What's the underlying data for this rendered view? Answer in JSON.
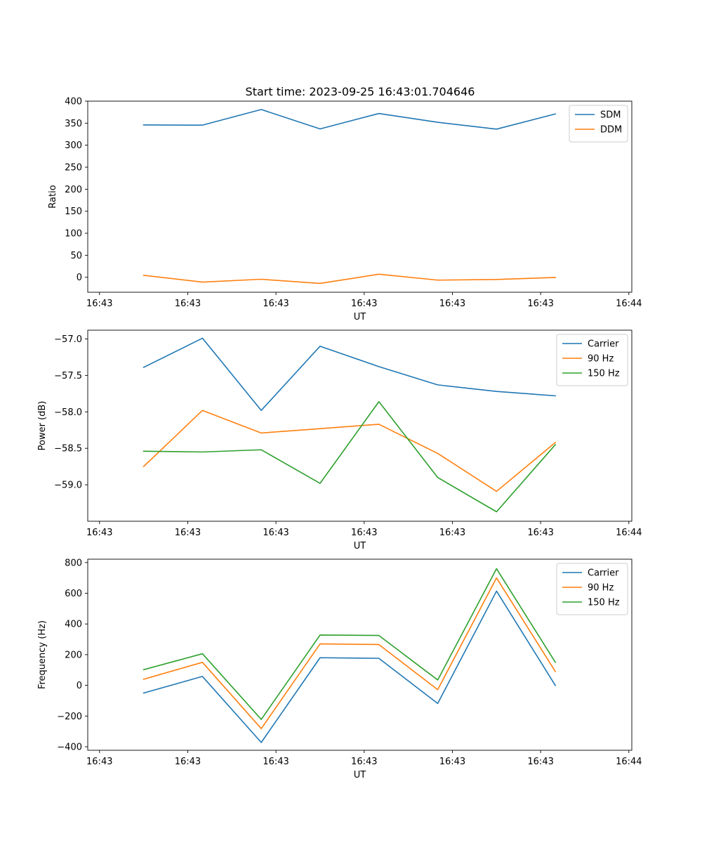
{
  "title": "Start time: 2023-09-25 16:43:01.704646",
  "colors": {
    "series_blue": "#1f77b4",
    "series_orange": "#ff7f0e",
    "series_green": "#2ca02c",
    "axes": "#000000",
    "legend_border": "#cccccc",
    "background": "#ffffff"
  },
  "chart_data": [
    {
      "type": "line",
      "xlabel": "UT",
      "ylabel": "Ratio",
      "title": "Start time: 2023-09-25 16:43:01.704646",
      "x_tick_labels": [
        "16:43",
        "16:43",
        "16:43",
        "16:43",
        "16:43",
        "16:43",
        "16:44"
      ],
      "xlim": [
        0.4,
        9.65
      ],
      "x_ticks": [
        0.6,
        2.1,
        3.6,
        5.1,
        6.6,
        8.1,
        9.6
      ],
      "x": [
        1.35,
        2.35,
        3.35,
        4.35,
        5.35,
        6.35,
        7.35,
        8.35
      ],
      "ylim": [
        -34,
        400
      ],
      "y_ticks": [
        0,
        50,
        100,
        150,
        200,
        250,
        300,
        350,
        400
      ],
      "y_tick_labels": [
        "0",
        "50",
        "100",
        "150",
        "200",
        "250",
        "300",
        "350",
        "400"
      ],
      "legend_position": "top-right",
      "series": [
        {
          "name": "SDM",
          "color_key": "series_blue",
          "values": [
            346,
            345.5,
            381,
            337,
            372,
            352,
            336.5,
            371
          ]
        },
        {
          "name": "DDM",
          "color_key": "series_orange",
          "values": [
            4.5,
            -11,
            -4.5,
            -14,
            7,
            -6.5,
            -5,
            -0.5
          ]
        }
      ]
    },
    {
      "type": "line",
      "xlabel": "UT",
      "ylabel": "Power (dB)",
      "x_tick_labels": [
        "16:43",
        "16:43",
        "16:43",
        "16:43",
        "16:43",
        "16:43",
        "16:44"
      ],
      "xlim": [
        0.4,
        9.65
      ],
      "x_ticks": [
        0.6,
        2.1,
        3.6,
        5.1,
        6.6,
        8.1,
        9.6
      ],
      "x": [
        1.35,
        2.35,
        3.35,
        4.35,
        5.35,
        6.35,
        7.35,
        8.35
      ],
      "ylim": [
        -59.5,
        -56.88
      ],
      "y_ticks": [
        -59.0,
        -58.5,
        -58.0,
        -57.5,
        -57.0
      ],
      "y_tick_labels": [
        "−59.0",
        "−58.5",
        "−58.0",
        "−57.5",
        "−57.0"
      ],
      "legend_position": "top-right",
      "series": [
        {
          "name": "Carrier",
          "color_key": "series_blue",
          "values": [
            -57.39,
            -56.99,
            -57.98,
            -57.1,
            -57.38,
            -57.63,
            -57.72,
            -57.78
          ]
        },
        {
          "name": "90 Hz",
          "color_key": "series_orange",
          "values": [
            -58.75,
            -57.98,
            -58.29,
            -58.23,
            -58.17,
            -58.57,
            -59.09,
            -58.42
          ]
        },
        {
          "name": "150 Hz",
          "color_key": "series_green",
          "values": [
            -58.54,
            -58.55,
            -58.52,
            -58.98,
            -57.86,
            -58.9,
            -59.37,
            -58.45
          ]
        }
      ]
    },
    {
      "type": "line",
      "xlabel": "UT",
      "ylabel": "Frequency (Hz)",
      "x_tick_labels": [
        "16:43",
        "16:43",
        "16:43",
        "16:43",
        "16:43",
        "16:43",
        "16:44"
      ],
      "xlim": [
        0.4,
        9.65
      ],
      "x_ticks": [
        0.6,
        2.1,
        3.6,
        5.1,
        6.6,
        8.1,
        9.6
      ],
      "x": [
        1.35,
        2.35,
        3.35,
        4.35,
        5.35,
        6.35,
        7.35,
        8.35
      ],
      "ylim": [
        -423,
        822
      ],
      "y_ticks": [
        -400,
        -200,
        0,
        200,
        400,
        600,
        800
      ],
      "y_tick_labels": [
        "−400",
        "−200",
        "0",
        "200",
        "400",
        "600",
        "800"
      ],
      "legend_position": "top-right",
      "series": [
        {
          "name": "Carrier",
          "color_key": "series_blue",
          "values": [
            -50,
            58,
            -372,
            180,
            176,
            -118,
            614,
            -1
          ]
        },
        {
          "name": "90 Hz",
          "color_key": "series_orange",
          "values": [
            40,
            150,
            -282,
            270,
            266,
            -28,
            700,
            90
          ]
        },
        {
          "name": "150 Hz",
          "color_key": "series_green",
          "values": [
            102,
            206,
            -222,
            328,
            325,
            35,
            760,
            150
          ]
        }
      ]
    }
  ]
}
